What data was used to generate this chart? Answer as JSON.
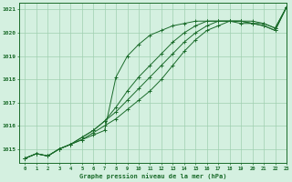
{
  "title": "Graphe pression niveau de la mer (hPa)",
  "background_color": "#d4f0e0",
  "grid_color": "#9fcfb0",
  "line_color": "#1a6b2a",
  "xlim": [
    -0.5,
    23
  ],
  "ylim": [
    1014.4,
    1021.3
  ],
  "yticks": [
    1015,
    1016,
    1017,
    1018,
    1019,
    1020,
    1021
  ],
  "xticks": [
    0,
    1,
    2,
    3,
    4,
    5,
    6,
    7,
    8,
    9,
    10,
    11,
    12,
    13,
    14,
    15,
    16,
    17,
    18,
    19,
    20,
    21,
    22,
    23
  ],
  "series": [
    {
      "x": [
        0,
        1,
        2,
        3,
        4,
        5,
        6,
        7,
        8,
        9,
        10,
        11,
        12,
        13,
        14,
        15,
        16,
        17,
        18,
        19,
        20,
        21,
        22,
        23
      ],
      "y": [
        1014.6,
        1014.8,
        1014.7,
        1015.0,
        1015.2,
        1015.4,
        1015.6,
        1015.8,
        1018.1,
        1019.0,
        1019.5,
        1019.9,
        1020.1,
        1020.3,
        1020.4,
        1020.5,
        1020.5,
        1020.5,
        1020.5,
        1020.4,
        1020.4,
        1020.3,
        1020.1,
        1021.1
      ],
      "marker": true,
      "linestyle": "-"
    },
    {
      "x": [
        0,
        1,
        2,
        3,
        4,
        5,
        6,
        7,
        8,
        9,
        10,
        11,
        12,
        13,
        14,
        15,
        16,
        17,
        18,
        19,
        20,
        21,
        22,
        23
      ],
      "y": [
        1014.6,
        1014.8,
        1014.7,
        1015.0,
        1015.2,
        1015.4,
        1015.7,
        1016.0,
        1016.3,
        1016.7,
        1017.1,
        1017.5,
        1018.0,
        1018.6,
        1019.2,
        1019.7,
        1020.1,
        1020.3,
        1020.5,
        1020.5,
        1020.5,
        1020.4,
        1020.2,
        1021.1
      ],
      "marker": true,
      "linestyle": "-"
    },
    {
      "x": [
        0,
        1,
        2,
        3,
        4,
        5,
        6,
        7,
        8,
        9,
        10,
        11,
        12,
        13,
        14,
        15,
        16,
        17,
        18,
        19,
        20,
        21,
        22,
        23
      ],
      "y": [
        1014.6,
        1014.8,
        1014.7,
        1015.0,
        1015.2,
        1015.5,
        1015.8,
        1016.2,
        1016.6,
        1017.1,
        1017.6,
        1018.1,
        1018.6,
        1019.1,
        1019.6,
        1020.0,
        1020.3,
        1020.5,
        1020.5,
        1020.5,
        1020.4,
        1020.4,
        1020.2,
        1021.1
      ],
      "marker": true,
      "linestyle": "-"
    },
    {
      "x": [
        0,
        1,
        2,
        3,
        4,
        5,
        6,
        7,
        8,
        9,
        10,
        11,
        12,
        13,
        14,
        15,
        16,
        17,
        18,
        19,
        20,
        21,
        22,
        23
      ],
      "y": [
        1014.6,
        1014.8,
        1014.7,
        1015.0,
        1015.2,
        1015.5,
        1015.8,
        1016.2,
        1016.8,
        1017.5,
        1018.1,
        1018.6,
        1019.1,
        1019.6,
        1020.0,
        1020.3,
        1020.5,
        1020.5,
        1020.5,
        1020.5,
        1020.4,
        1020.3,
        1020.1,
        1021.1
      ],
      "marker": true,
      "linestyle": "--"
    }
  ]
}
